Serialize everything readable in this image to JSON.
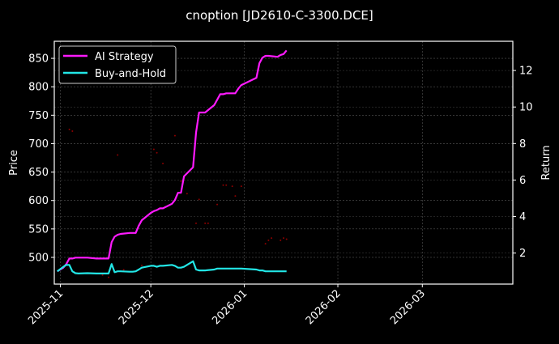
{
  "chart_data": {
    "type": "line",
    "title": "cnoption [JD2610-C-3300.DCE]",
    "xlabel": "",
    "ylabel": "Price",
    "ylabel_right": "Return",
    "x_ticks": [
      "2025-11",
      "2025-12",
      "2026-01",
      "2026-02",
      "2026-03"
    ],
    "y_ticks_left": [
      500,
      550,
      600,
      650,
      700,
      750,
      800,
      850
    ],
    "y_ticks_right": [
      2,
      4,
      6,
      8,
      10,
      12
    ],
    "ylim_left": [
      453,
      880
    ],
    "ylim_right": [
      0.3,
      13.6
    ],
    "xlim": [
      "2025-10-30",
      "2026-03-31"
    ],
    "grid": true,
    "legend_position": "upper left",
    "legend": [
      "AI Strategy",
      "Buy-and-Hold"
    ],
    "series": [
      {
        "name": "AI Strategy",
        "axis": "right",
        "color": "#ff1aff",
        "x": [
          "2025-10-31",
          "2025-11-02",
          "2025-11-03",
          "2025-11-04",
          "2025-11-05",
          "2025-11-06",
          "2025-11-07",
          "2025-11-10",
          "2025-11-13",
          "2025-11-14",
          "2025-11-17",
          "2025-11-18",
          "2025-11-19",
          "2025-11-20",
          "2025-11-21",
          "2025-11-24",
          "2025-11-25",
          "2025-11-26",
          "2025-11-27",
          "2025-11-28",
          "2025-12-01",
          "2025-12-02",
          "2025-12-03",
          "2025-12-04",
          "2025-12-05",
          "2025-12-08",
          "2025-12-09",
          "2025-12-10",
          "2025-12-11",
          "2025-12-12",
          "2025-12-15",
          "2025-12-16",
          "2025-12-17",
          "2025-12-18",
          "2025-12-19",
          "2025-12-22",
          "2025-12-23",
          "2025-12-24",
          "2025-12-25",
          "2025-12-26",
          "2025-12-29",
          "2025-12-30",
          "2025-12-31",
          "2026-01-05",
          "2026-01-06",
          "2026-01-07",
          "2026-01-08",
          "2026-01-09",
          "2026-01-12",
          "2026-01-13",
          "2026-01-14",
          "2026-01-15"
        ],
        "values": [
          1.0,
          1.2,
          1.4,
          1.7,
          1.7,
          1.75,
          1.75,
          1.75,
          1.7,
          1.7,
          1.7,
          2.6,
          2.9,
          3.0,
          3.05,
          3.1,
          3.1,
          3.1,
          3.5,
          3.8,
          4.2,
          4.3,
          4.35,
          4.45,
          4.45,
          4.7,
          4.9,
          5.3,
          5.3,
          6.2,
          6.7,
          8.6,
          9.7,
          9.7,
          9.7,
          10.1,
          10.4,
          10.7,
          10.7,
          10.75,
          10.75,
          11.0,
          11.2,
          11.6,
          12.4,
          12.7,
          12.8,
          12.8,
          12.75,
          12.85,
          12.9,
          13.1
        ]
      },
      {
        "name": "Buy-and-Hold",
        "axis": "right",
        "color": "#22e6e6",
        "x": [
          "2025-10-31",
          "2025-11-02",
          "2025-11-03",
          "2025-11-04",
          "2025-11-05",
          "2025-11-06",
          "2025-11-07",
          "2025-11-10",
          "2025-11-13",
          "2025-11-14",
          "2025-11-17",
          "2025-11-18",
          "2025-11-19",
          "2025-11-20",
          "2025-11-21",
          "2025-11-24",
          "2025-11-25",
          "2025-11-26",
          "2025-11-27",
          "2025-11-28",
          "2025-12-01",
          "2025-12-02",
          "2025-12-03",
          "2025-12-04",
          "2025-12-05",
          "2025-12-08",
          "2025-12-09",
          "2025-12-10",
          "2025-12-11",
          "2025-12-12",
          "2025-12-15",
          "2025-12-16",
          "2025-12-17",
          "2025-12-18",
          "2025-12-19",
          "2025-12-22",
          "2025-12-23",
          "2025-12-24",
          "2025-12-25",
          "2025-12-26",
          "2025-12-29",
          "2025-12-30",
          "2025-12-31",
          "2026-01-05",
          "2026-01-06",
          "2026-01-07",
          "2026-01-08",
          "2026-01-09",
          "2026-01-12",
          "2026-01-13",
          "2026-01-14",
          "2026-01-15"
        ],
        "values": [
          1.0,
          1.25,
          1.35,
          1.35,
          1.0,
          0.9,
          0.88,
          0.9,
          0.88,
          0.88,
          0.88,
          1.4,
          0.95,
          1.0,
          1.0,
          0.98,
          0.98,
          1.0,
          1.1,
          1.2,
          1.3,
          1.3,
          1.25,
          1.3,
          1.3,
          1.35,
          1.3,
          1.2,
          1.2,
          1.25,
          1.55,
          1.1,
          1.05,
          1.05,
          1.05,
          1.1,
          1.15,
          1.15,
          1.15,
          1.15,
          1.15,
          1.15,
          1.15,
          1.1,
          1.05,
          1.05,
          1.0,
          1.0,
          1.0,
          1.0,
          1.0,
          1.0
        ]
      }
    ],
    "scatter_markers": {
      "axis": "left",
      "color": "#8b0000",
      "points": [
        [
          "2025-11-04",
          725
        ],
        [
          "2025-11-05",
          722
        ],
        [
          "2025-11-20",
          680
        ],
        [
          "2025-11-28",
          486
        ],
        [
          "2025-12-02",
          690
        ],
        [
          "2025-12-03",
          684
        ],
        [
          "2025-12-05",
          665
        ],
        [
          "2025-12-09",
          714
        ],
        [
          "2025-12-11",
          634
        ],
        [
          "2025-12-13",
          612
        ],
        [
          "2025-12-16",
          560
        ],
        [
          "2025-12-17",
          602
        ],
        [
          "2025-12-19",
          560
        ],
        [
          "2025-12-20",
          560
        ],
        [
          "2025-12-23",
          593
        ],
        [
          "2025-12-25",
          627
        ],
        [
          "2025-12-26",
          627
        ],
        [
          "2025-12-28",
          625
        ],
        [
          "2025-12-29",
          608
        ],
        [
          "2025-12-31",
          625
        ],
        [
          "2026-01-08",
          524
        ],
        [
          "2026-01-09",
          530
        ],
        [
          "2026-01-10",
          534
        ],
        [
          "2026-01-13",
          530
        ],
        [
          "2026-01-14",
          534
        ],
        [
          "2026-01-15",
          532
        ],
        [
          "2025-11-15",
          469
        ],
        [
          "2025-11-17",
          465
        ],
        [
          "2025-11-22",
          478
        ]
      ]
    }
  },
  "legend": {
    "items": [
      {
        "label": "AI Strategy",
        "color": "#ff1aff"
      },
      {
        "label": "Buy-and-Hold",
        "color": "#22e6e6"
      }
    ]
  },
  "colors": {
    "background": "#000000",
    "axes": "#ffffff",
    "grid": "#555555"
  }
}
